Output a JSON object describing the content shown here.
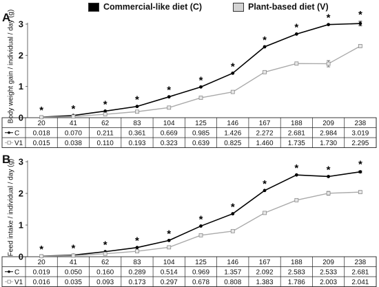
{
  "legend": {
    "c_label": "Commercial-like diet (C)",
    "v_label": "Plant-based diet (V)",
    "c_color": "#000000",
    "v_color": "#d3d3d3"
  },
  "chart_data": [
    {
      "panel": "A",
      "type": "line",
      "ylabel": "Body weight gain / individual / day (g)",
      "ylim": [
        0,
        3
      ],
      "yticks": [
        0,
        1,
        2,
        3
      ],
      "x": [
        "20",
        "41",
        "62",
        "83",
        "104",
        "125",
        "146",
        "167",
        "188",
        "209",
        "238"
      ],
      "significance_marker": "*",
      "series": [
        {
          "name": "C",
          "color": "#000000",
          "marker": "filled-circle",
          "values": [
            "0.018",
            "0.070",
            "0.211",
            "0.361",
            "0.669",
            "0.985",
            "1.426",
            "2.272",
            "2.681",
            "2.984",
            "3.019"
          ],
          "errors": [
            0,
            0,
            0,
            0,
            0,
            0,
            0,
            0,
            0,
            0,
            0.07
          ]
        },
        {
          "name": "V1",
          "color": "#aaaaaa",
          "marker": "open-square",
          "values": [
            "0.015",
            "0.038",
            "0.110",
            "0.193",
            "0.323",
            "0.639",
            "0.825",
            "1.460",
            "1.735",
            "1.730",
            "2.295"
          ],
          "errors": [
            0,
            0,
            0,
            0,
            0,
            0,
            0,
            0,
            0,
            0.1,
            0.03
          ]
        }
      ]
    },
    {
      "panel": "B",
      "type": "line",
      "ylabel": "Feed intake / individual / day (g)",
      "ylim": [
        0,
        3
      ],
      "yticks": [
        0,
        1,
        2,
        3
      ],
      "x": [
        "20",
        "41",
        "62",
        "83",
        "104",
        "125",
        "146",
        "167",
        "188",
        "209",
        "238"
      ],
      "significance_marker": "*",
      "series": [
        {
          "name": "C",
          "color": "#000000",
          "marker": "filled-circle",
          "values": [
            "0.019",
            "0.050",
            "0.160",
            "0.289",
            "0.514",
            "0.969",
            "1.357",
            "2.092",
            "2.583",
            "2.533",
            "2.681"
          ],
          "errors": [
            0,
            0,
            0,
            0,
            0,
            0,
            0,
            0,
            0,
            0,
            0.03
          ]
        },
        {
          "name": "V1",
          "color": "#aaaaaa",
          "marker": "open-square",
          "values": [
            "0.016",
            "0.035",
            "0.093",
            "0.173",
            "0.297",
            "0.678",
            "0.808",
            "1.383",
            "1.786",
            "2.003",
            "2.041"
          ],
          "errors": [
            0,
            0,
            0,
            0,
            0,
            0,
            0,
            0,
            0.04,
            0.06,
            0
          ]
        }
      ]
    }
  ]
}
